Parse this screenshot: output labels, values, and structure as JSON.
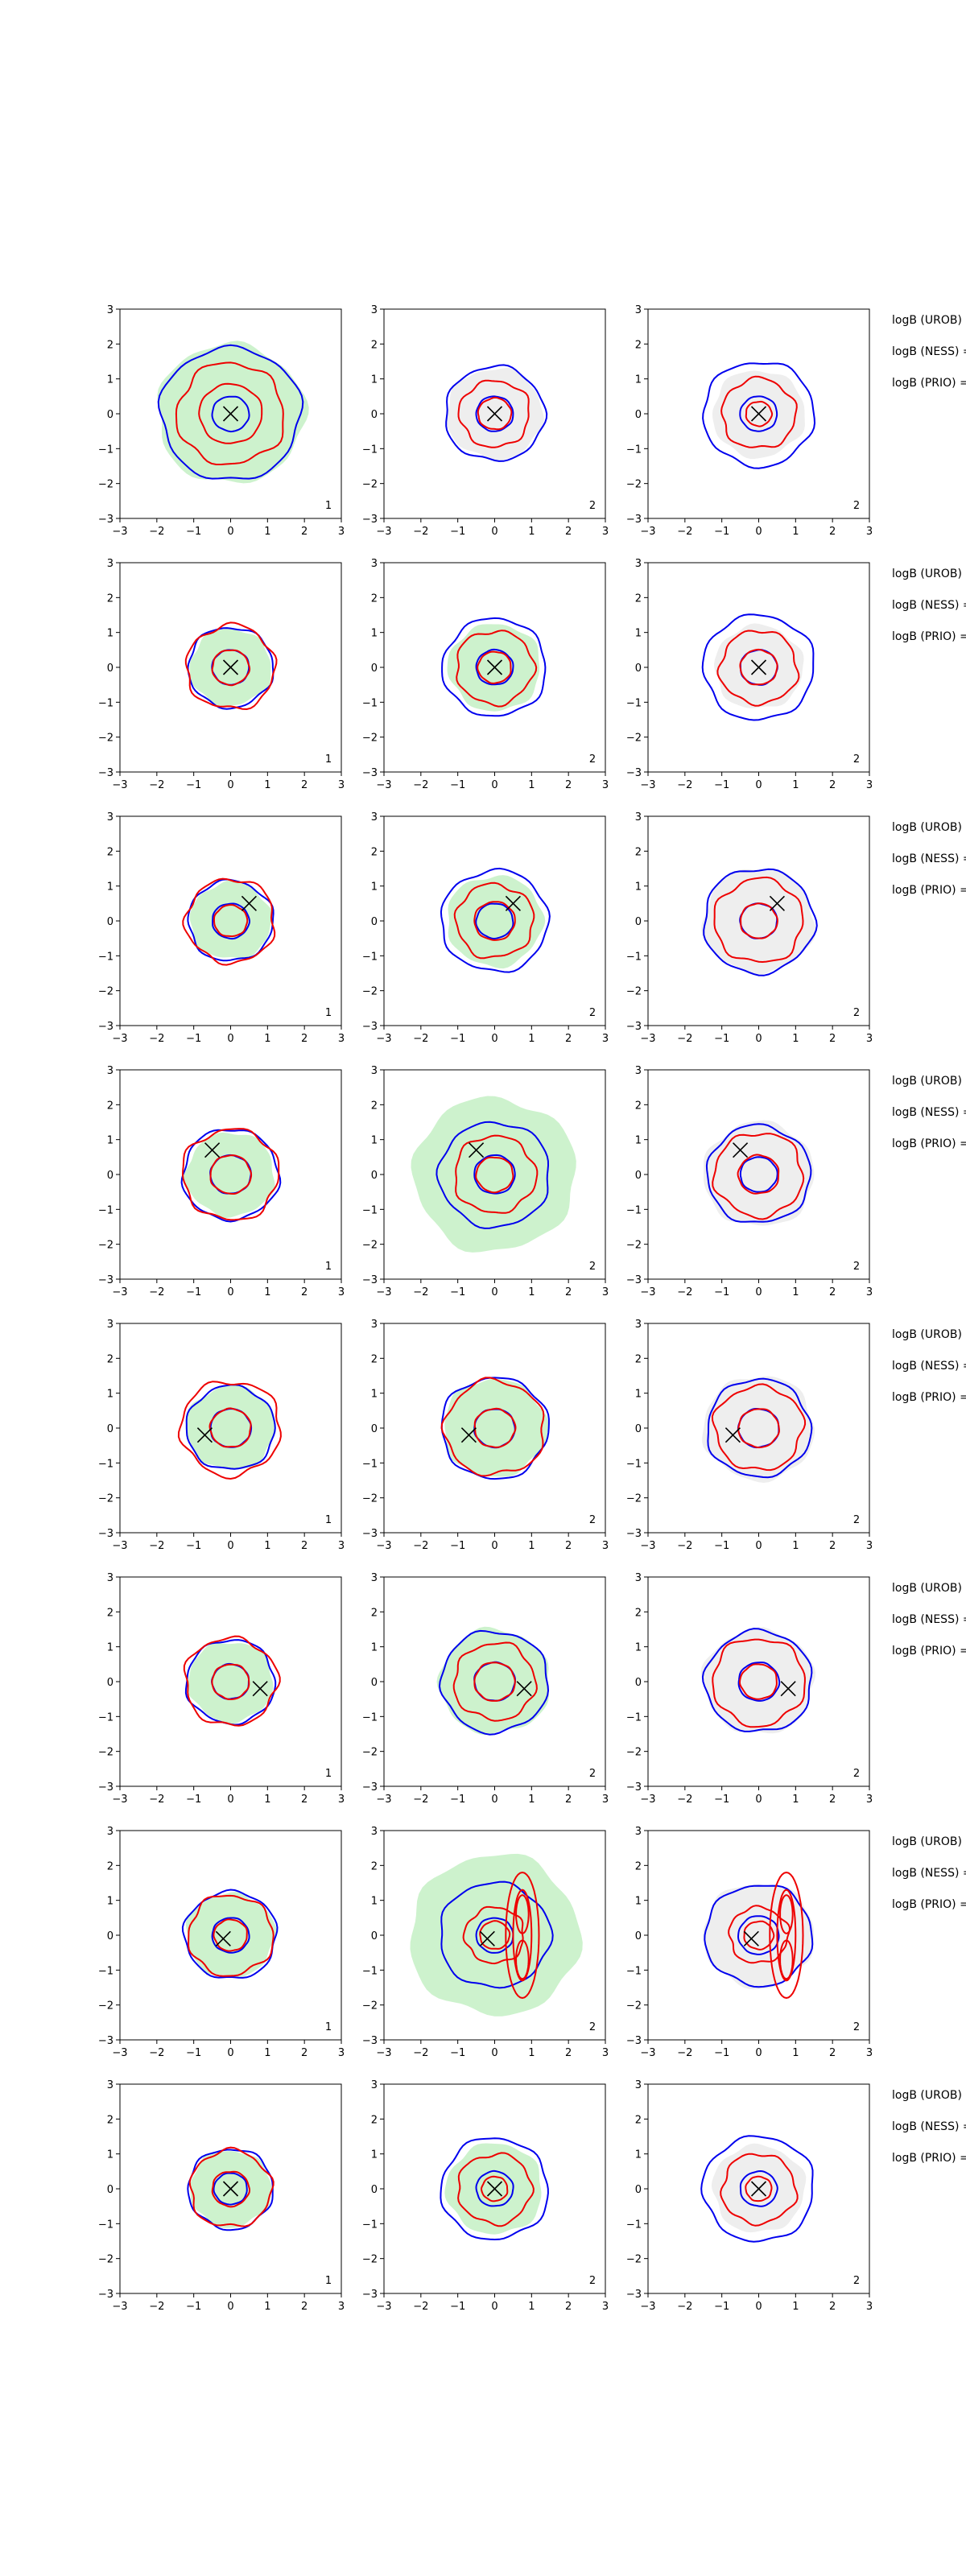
{
  "chart_data": {
    "type": "contour",
    "grid": {
      "rows": 8,
      "cols": 3
    },
    "xlim": [
      -3,
      3
    ],
    "ylim": [
      -3,
      3
    ],
    "xticks": [
      "−3",
      "−2",
      "−1",
      "0",
      "1",
      "2",
      "3"
    ],
    "yticks": [
      "−3",
      "−2",
      "−1",
      "0",
      "1",
      "2",
      "3"
    ],
    "colors": {
      "blue_contour": "#0000ee",
      "red_contour": "#ee0000",
      "green_fill": "#cdf2cd",
      "gray_fill": "#eeeeee",
      "marker": "#000000"
    },
    "column_labels": [
      "1",
      "2",
      "2"
    ],
    "row_labels": [
      "logB (UROB)",
      "logB (NESS) =",
      "logB (PRIO) ="
    ],
    "rows": [
      {
        "true_point": [
          0,
          0
        ],
        "panels": [
          {
            "label": "1",
            "fill": "green",
            "fill_r": 2.0,
            "blue": [
              1.9,
              0.5
            ],
            "red": [
              1.45,
              0.85
            ]
          },
          {
            "label": "2",
            "fill": "gray",
            "fill_r": 1.3,
            "blue": [
              1.35,
              0.5
            ],
            "red": [
              0.95,
              0.45
            ]
          },
          {
            "label": "2",
            "fill": "gray",
            "fill_r": 1.25,
            "blue": [
              1.5,
              0.5
            ],
            "red": [
              1.0,
              0.35
            ]
          }
        ]
      },
      {
        "true_point": [
          0,
          0
        ],
        "panels": [
          {
            "label": "1",
            "fill": "green",
            "fill_r": 1.1,
            "blue": [
              1.15,
              0.5
            ],
            "red": [
              1.2,
              0.5
            ]
          },
          {
            "label": "2",
            "fill": "green",
            "fill_r": 1.25,
            "blue": [
              1.4,
              0.5
            ],
            "red": [
              1.05,
              0.45
            ]
          },
          {
            "label": "2",
            "fill": "gray",
            "fill_r": 1.2,
            "blue": [
              1.5,
              0.5
            ],
            "red": [
              1.05,
              0.5
            ]
          }
        ]
      },
      {
        "true_point": [
          0.5,
          0.5
        ],
        "panels": [
          {
            "label": "1",
            "fill": "green",
            "fill_r": 1.1,
            "blue": [
              1.15,
              0.5
            ],
            "red": [
              1.2,
              0.45
            ]
          },
          {
            "label": "2",
            "fill": "green",
            "fill_r": 1.3,
            "blue": [
              1.45,
              0.5
            ],
            "red": [
              1.05,
              0.55
            ]
          },
          {
            "label": "2",
            "fill": "gray",
            "fill_r": 1.5,
            "blue": [
              1.5,
              0.5
            ],
            "red": [
              1.2,
              0.5
            ]
          }
        ]
      },
      {
        "true_point": [
          -0.5,
          0.7
        ],
        "panels": [
          {
            "label": "1",
            "fill": "green",
            "fill_r": 1.2,
            "blue": [
              1.3,
              0.55
            ],
            "red": [
              1.3,
              0.55
            ]
          },
          {
            "label": "2",
            "fill": "green",
            "fill_r": 2.2,
            "blue": [
              1.5,
              0.55
            ],
            "red": [
              1.1,
              0.5
            ]
          },
          {
            "label": "2",
            "fill": "gray",
            "fill_r": 1.5,
            "blue": [
              1.4,
              0.5
            ],
            "red": [
              1.2,
              0.55
            ]
          }
        ]
      },
      {
        "true_point": [
          -0.7,
          -0.2
        ],
        "panels": [
          {
            "label": "1",
            "fill": "green",
            "fill_r": 1.2,
            "blue": [
              1.2,
              0.55
            ],
            "red": [
              1.35,
              0.55
            ]
          },
          {
            "label": "2",
            "fill": "green",
            "fill_r": 1.4,
            "blue": [
              1.45,
              0.55
            ],
            "red": [
              1.35,
              0.55
            ]
          },
          {
            "label": "2",
            "fill": "gray",
            "fill_r": 1.5,
            "blue": [
              1.4,
              0.55
            ],
            "red": [
              1.2,
              0.55
            ]
          }
        ]
      },
      {
        "true_point": [
          0.8,
          -0.2
        ],
        "panels": [
          {
            "label": "1",
            "fill": "green",
            "fill_r": 1.15,
            "blue": [
              1.2,
              0.5
            ],
            "red": [
              1.25,
              0.5
            ]
          },
          {
            "label": "2",
            "fill": "green",
            "fill_r": 1.5,
            "blue": [
              1.45,
              0.55
            ],
            "red": [
              1.1,
              0.55
            ]
          },
          {
            "label": "2",
            "fill": "gray",
            "fill_r": 1.5,
            "blue": [
              1.45,
              0.55
            ],
            "red": [
              1.25,
              0.5
            ]
          }
        ]
      },
      {
        "true_point": [
          -0.2,
          -0.1
        ],
        "panels": [
          {
            "label": "1",
            "fill": "green",
            "fill_r": 1.2,
            "blue": [
              1.25,
              0.5
            ],
            "red": [
              1.15,
              0.45
            ]
          },
          {
            "label": "2",
            "fill": "green",
            "fill_r": 2.3,
            "blue": [
              1.5,
              0.5
            ],
            "red": [
              0.8,
              0.4
            ],
            "extra_red": true
          },
          {
            "label": "2",
            "fill": "gray",
            "fill_r": 1.5,
            "blue": [
              1.45,
              0.55
            ],
            "red": [
              0.8,
              0.4
            ],
            "extra_red": true
          }
        ]
      },
      {
        "true_point": [
          0,
          0
        ],
        "panels": [
          {
            "label": "1",
            "fill": "green",
            "fill_r": 1.1,
            "blue": [
              1.15,
              0.45
            ],
            "red": [
              1.1,
              0.5
            ]
          },
          {
            "label": "2",
            "fill": "green",
            "fill_r": 1.3,
            "blue": [
              1.45,
              0.5
            ],
            "red": [
              1.0,
              0.35
            ]
          },
          {
            "label": "2",
            "fill": "gray",
            "fill_r": 1.25,
            "blue": [
              1.5,
              0.5
            ],
            "red": [
              1.0,
              0.35
            ]
          }
        ]
      }
    ]
  }
}
